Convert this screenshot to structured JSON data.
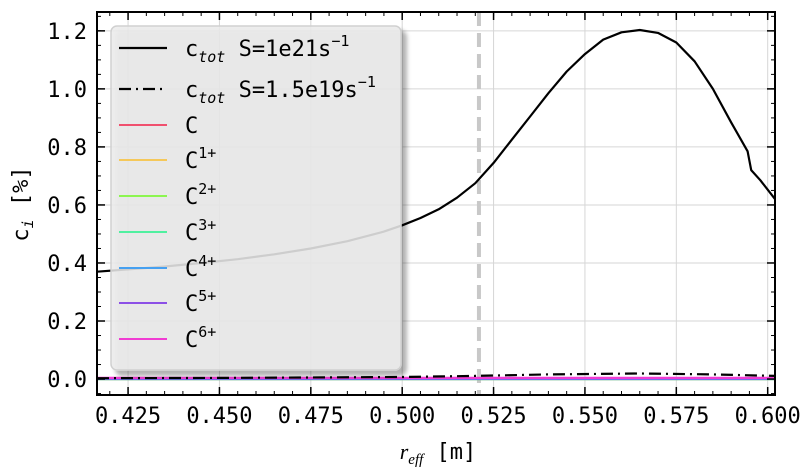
{
  "chart_data": {
    "type": "line",
    "title": "",
    "xlabel": {
      "main": "r",
      "sub": "eff",
      "unit": "[m]"
    },
    "ylabel": {
      "main": "c",
      "sub": "i",
      "unit": "[%]"
    },
    "xlim": [
      0.4165,
      0.602
    ],
    "ylim": [
      -0.055,
      1.265
    ],
    "xticks": [
      0.425,
      0.45,
      0.475,
      0.5,
      0.525,
      0.55,
      0.575,
      0.6
    ],
    "xtick_labels": [
      "0.425",
      "0.450",
      "0.475",
      "0.500",
      "0.525",
      "0.550",
      "0.575",
      "0.600"
    ],
    "yticks": [
      0.0,
      0.2,
      0.4,
      0.6,
      0.8,
      1.0,
      1.2
    ],
    "ytick_labels": [
      "0.0",
      "0.2",
      "0.4",
      "0.6",
      "0.8",
      "1.0",
      "1.2"
    ],
    "grid": true,
    "legend_position": "upper-left",
    "vertical_line": {
      "x": 0.521,
      "style": "dashed",
      "color": "#c8c8c8"
    },
    "series": [
      {
        "name": {
          "main": "c",
          "sub": "tot",
          "rest": "S=1e21s",
          "sup": "−1"
        },
        "color": "#000000",
        "style": "solid",
        "x": [
          0.4165,
          0.425,
          0.435,
          0.445,
          0.455,
          0.465,
          0.475,
          0.485,
          0.495,
          0.5,
          0.505,
          0.51,
          0.515,
          0.52,
          0.525,
          0.53,
          0.535,
          0.54,
          0.545,
          0.55,
          0.555,
          0.56,
          0.565,
          0.57,
          0.575,
          0.58,
          0.585,
          0.59,
          0.5945,
          0.5955,
          0.598,
          0.602
        ],
        "y": [
          0.37,
          0.378,
          0.388,
          0.4,
          0.413,
          0.43,
          0.45,
          0.475,
          0.508,
          0.53,
          0.555,
          0.585,
          0.625,
          0.675,
          0.745,
          0.825,
          0.905,
          0.985,
          1.06,
          1.12,
          1.17,
          1.195,
          1.203,
          1.193,
          1.16,
          1.095,
          1.0,
          0.885,
          0.785,
          0.72,
          0.685,
          0.62
        ]
      },
      {
        "name": {
          "main": "c",
          "sub": "tot",
          "rest": "S=1.5e19s",
          "sup": "−1"
        },
        "color": "#000000",
        "style": "dashdot",
        "x": [
          0.4165,
          0.45,
          0.5,
          0.52,
          0.54,
          0.565,
          0.585,
          0.602
        ],
        "y": [
          0.003,
          0.004,
          0.007,
          0.011,
          0.016,
          0.019,
          0.016,
          0.011
        ]
      },
      {
        "name": {
          "main": "C",
          "sup": ""
        },
        "color": "#f0506e",
        "style": "solid",
        "x": [
          0.4165,
          0.602
        ],
        "y": [
          0.0,
          0.0
        ]
      },
      {
        "name": {
          "main": "C",
          "sup": "1+"
        },
        "color": "#f5c85a",
        "style": "solid",
        "x": [
          0.4165,
          0.602
        ],
        "y": [
          0.0,
          0.0
        ]
      },
      {
        "name": {
          "main": "C",
          "sup": "2+"
        },
        "color": "#8cf550",
        "style": "solid",
        "x": [
          0.4165,
          0.602
        ],
        "y": [
          0.0,
          0.0
        ]
      },
      {
        "name": {
          "main": "C",
          "sup": "3+"
        },
        "color": "#50f0a0",
        "style": "solid",
        "x": [
          0.4165,
          0.602
        ],
        "y": [
          0.0,
          0.0
        ]
      },
      {
        "name": {
          "main": "C",
          "sup": "4+"
        },
        "color": "#46a0f0",
        "style": "solid",
        "x": [
          0.4165,
          0.602
        ],
        "y": [
          0.0,
          0.0
        ]
      },
      {
        "name": {
          "main": "C",
          "sup": "5+"
        },
        "color": "#8c50e6",
        "style": "solid",
        "x": [
          0.4165,
          0.602
        ],
        "y": [
          0.002,
          0.002
        ]
      },
      {
        "name": {
          "main": "C",
          "sup": "6+"
        },
        "color": "#f03cd2",
        "style": "solid",
        "x": [
          0.4165,
          0.602
        ],
        "y": [
          0.004,
          0.004
        ]
      }
    ]
  }
}
